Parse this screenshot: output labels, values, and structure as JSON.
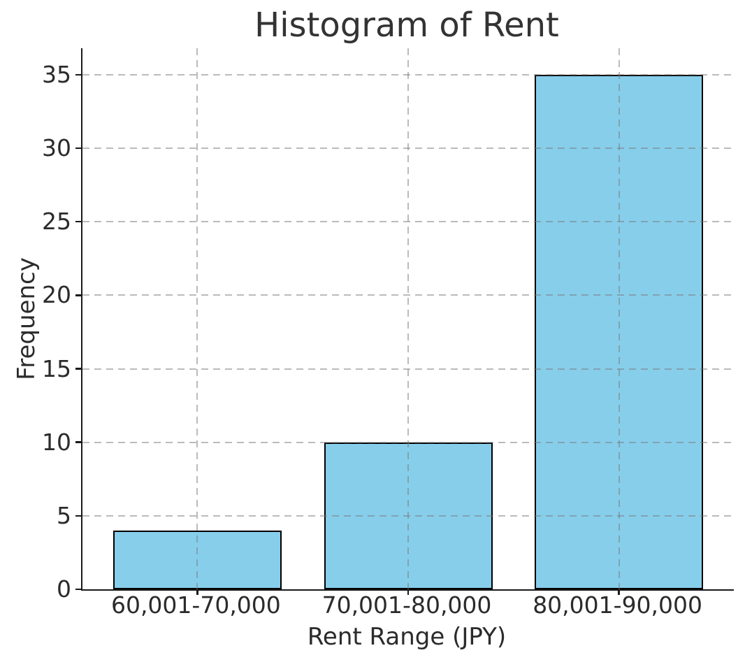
{
  "chart_data": {
    "type": "bar",
    "title": "Histogram of Rent",
    "xlabel": "Rent Range (JPY)",
    "ylabel": "Frequency",
    "categories": [
      "60,001-70,000",
      "70,001-80,000",
      "80,001-90,000"
    ],
    "values": [
      4,
      10,
      35
    ],
    "yticks": [
      0,
      5,
      10,
      15,
      20,
      25,
      30,
      35
    ],
    "ylim": [
      0,
      36.8
    ],
    "grid": "dashed gray, horizontal and vertical, drawn above bars",
    "legend": "none",
    "bar_color": "#87CEEB",
    "bar_edge_color": "#000000",
    "background_color": "#ffffff",
    "text_color": "#2b2b2b"
  }
}
